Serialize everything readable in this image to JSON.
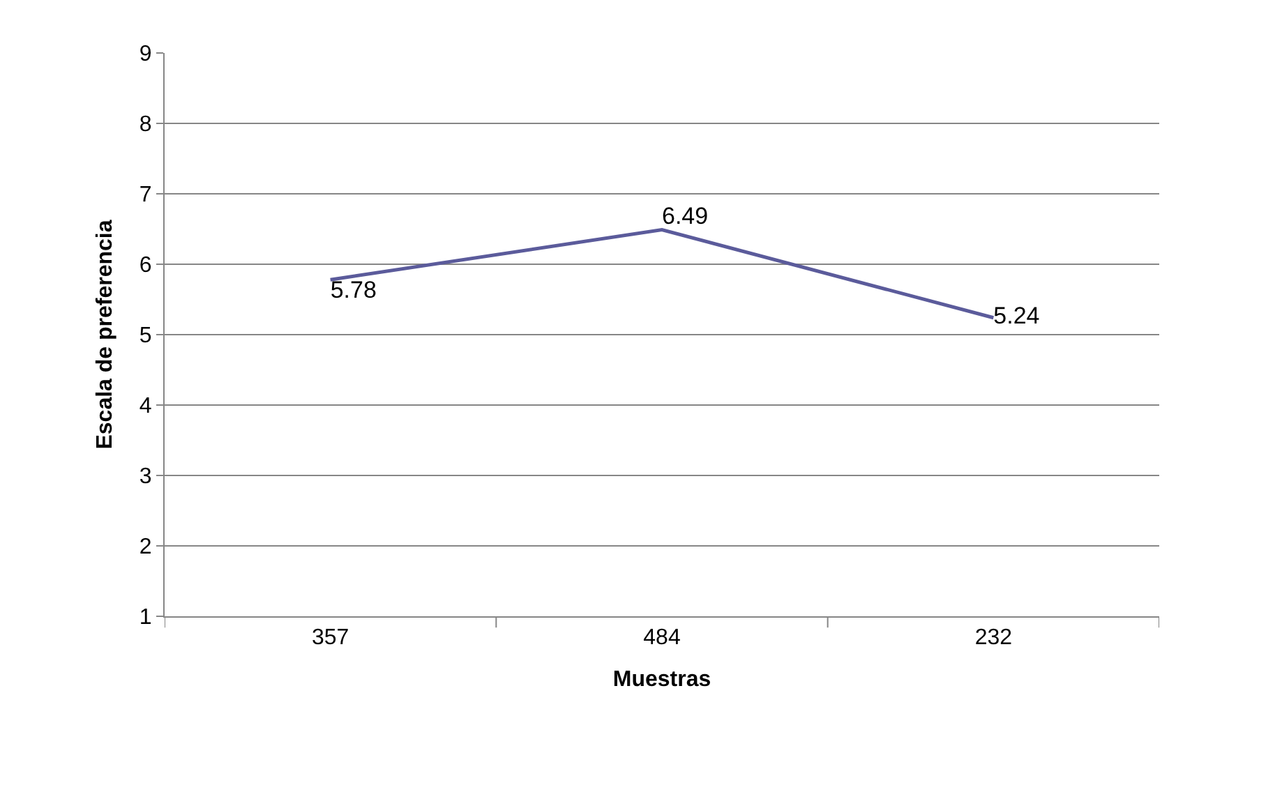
{
  "chart_data": {
    "type": "line",
    "xlabel": "Muestras",
    "ylabel": "Escala de preferencia",
    "categories": [
      "357",
      "484",
      "232"
    ],
    "series": [
      {
        "color": "#5b5b9b",
        "values": [
          5.78,
          6.49,
          5.24
        ]
      }
    ],
    "ylim": [
      1,
      9
    ],
    "yticks": [
      1,
      2,
      3,
      4,
      5,
      6,
      7,
      8,
      9
    ],
    "grid": "y",
    "data_labels": true,
    "marker": "none",
    "line_style": "solid"
  }
}
